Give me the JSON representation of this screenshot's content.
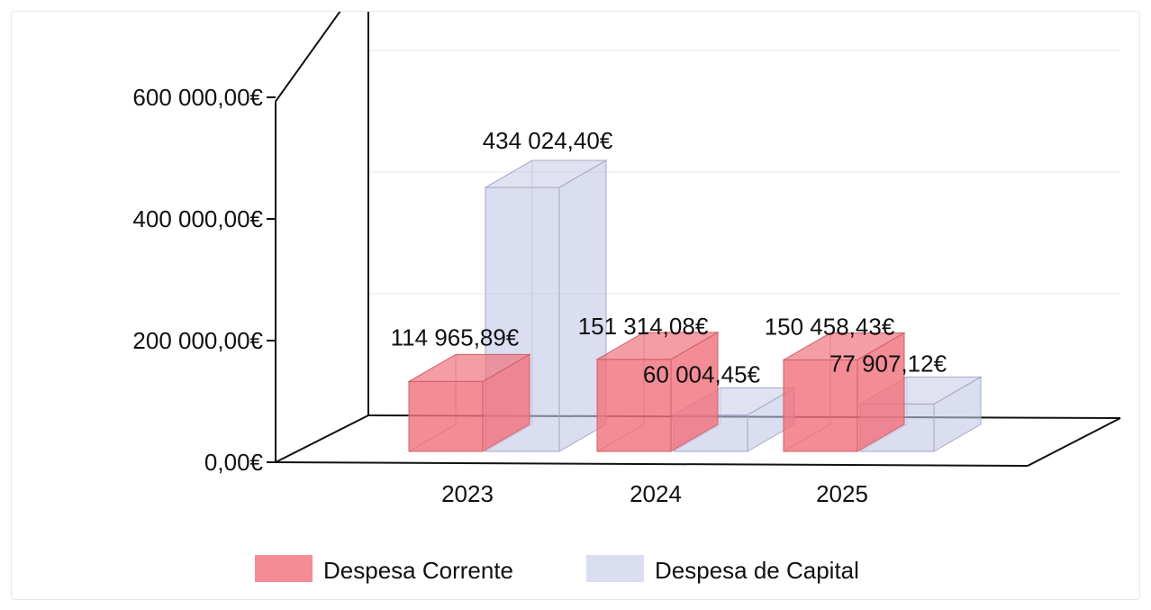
{
  "chart_data": {
    "type": "bar",
    "title": "",
    "xlabel": "",
    "ylabel": "",
    "categories": [
      "2023",
      "2024",
      "2025"
    ],
    "series": [
      {
        "name": "Despesa Corrente",
        "values": [
          114965.89,
          151314.08,
          150458.43
        ],
        "labels": [
          "114 965,89€",
          "151 314,08€",
          "150 458,43€"
        ],
        "color": "#f0737d"
      },
      {
        "name": "Despesa de Capital",
        "values": [
          434024.4,
          60004.45,
          77907.12
        ],
        "labels": [
          "434 024,40€",
          "60 004,45€",
          "77 907,12€"
        ],
        "color": "#c3c6e6"
      }
    ],
    "y_ticks": [
      {
        "value": 0,
        "label": "0,00€"
      },
      {
        "value": 200000,
        "label": "200 000,00€"
      },
      {
        "value": 400000,
        "label": "400 000,00€"
      },
      {
        "value": 600000,
        "label": "600 000,00€"
      }
    ],
    "ylim": [
      0,
      600000
    ],
    "grid": true,
    "three_d": true,
    "legend_position": "bottom"
  }
}
